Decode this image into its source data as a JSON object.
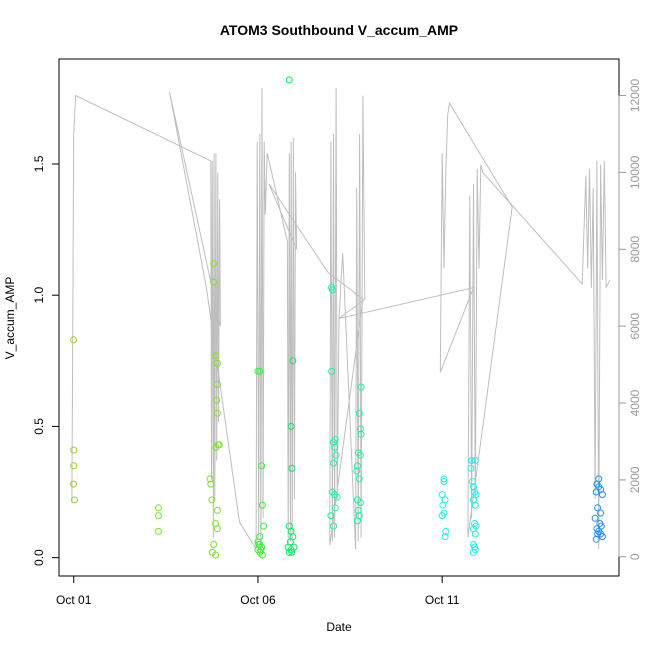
{
  "chart_data": {
    "type": "scatter",
    "title": "ATOM3 Southbound V_accum_AMP",
    "xlabel": "Date",
    "ylabel": "V_accum_AMP",
    "x_ticks": [
      "Oct 01",
      "Oct 06",
      "Oct 11"
    ],
    "x_tick_values": [
      1,
      6,
      11
    ],
    "xlim": [
      0.6,
      15.8
    ],
    "ylim": [
      -0.07,
      1.9
    ],
    "y_ticks": [
      "0.0",
      "0.5",
      "1.0",
      "1.5"
    ],
    "y_tick_values": [
      0,
      0.5,
      1.0,
      1.5
    ],
    "y2_ticks": [
      "0",
      "2000",
      "4000",
      "6000",
      "8000",
      "10000",
      "12000"
    ],
    "y2_tick_values": [
      0,
      2000,
      4000,
      6000,
      8000,
      10000,
      12000
    ],
    "y2lim": [
      -500,
      12950
    ],
    "grid": false,
    "colors": [
      "#9ACD32",
      "#7FE030",
      "#3EF03E",
      "#00F060",
      "#22F0A0",
      "#22EEEE",
      "#1E90FF"
    ],
    "series": [
      {
        "values": [
          [
            1.0,
            0.83
          ],
          [
            1.0,
            0.41
          ],
          [
            1.0,
            0.35
          ],
          [
            1.0,
            0.28
          ],
          [
            1.02,
            0.22
          ]
        ]
      },
      {
        "values": [
          [
            3.3,
            0.19
          ],
          [
            3.3,
            0.16
          ],
          [
            3.3,
            0.1
          ],
          [
            4.7,
            0.3
          ],
          [
            4.72,
            0.28
          ],
          [
            4.75,
            0.22
          ],
          [
            4.8,
            1.12
          ],
          [
            4.8,
            1.05
          ],
          [
            4.85,
            0.77
          ],
          [
            4.9,
            0.74
          ],
          [
            4.9,
            0.66
          ],
          [
            4.88,
            0.6
          ],
          [
            4.9,
            0.55
          ],
          [
            4.92,
            0.43
          ],
          [
            4.86,
            0.42
          ],
          [
            4.95,
            0.43
          ],
          [
            4.9,
            0.18
          ],
          [
            4.85,
            0.13
          ],
          [
            4.9,
            0.11
          ],
          [
            4.8,
            0.05
          ],
          [
            4.76,
            0.02
          ],
          [
            4.85,
            0.01
          ]
        ]
      },
      {
        "values": [
          [
            6.0,
            0.71
          ],
          [
            6.05,
            0.71
          ],
          [
            6.1,
            0.35
          ],
          [
            6.12,
            0.2
          ],
          [
            6.15,
            0.12
          ],
          [
            6.05,
            0.08
          ],
          [
            6.0,
            0.06
          ],
          [
            6.05,
            0.05
          ],
          [
            6.1,
            0.04
          ],
          [
            6.0,
            0.03
          ],
          [
            6.05,
            0.02
          ],
          [
            6.12,
            0.01
          ],
          [
            6.02,
            0.05
          ],
          [
            6.08,
            0.03
          ]
        ]
      },
      {
        "values": [
          [
            6.85,
            1.82
          ],
          [
            6.95,
            0.75
          ],
          [
            6.9,
            0.5
          ],
          [
            6.92,
            0.34
          ],
          [
            6.85,
            0.12
          ],
          [
            6.9,
            0.1
          ],
          [
            6.95,
            0.08
          ],
          [
            6.88,
            0.06
          ],
          [
            6.82,
            0.04
          ],
          [
            6.98,
            0.04
          ],
          [
            6.9,
            0.03
          ],
          [
            6.85,
            0.02
          ],
          [
            6.92,
            0.02
          ]
        ]
      },
      {
        "values": [
          [
            8.0,
            1.03
          ],
          [
            8.02,
            1.02
          ],
          [
            8.0,
            0.71
          ],
          [
            8.1,
            0.45
          ],
          [
            8.05,
            0.44
          ],
          [
            8.08,
            0.42
          ],
          [
            8.12,
            0.39
          ],
          [
            8.05,
            0.36
          ],
          [
            8.02,
            0.25
          ],
          [
            8.08,
            0.24
          ],
          [
            8.15,
            0.23
          ],
          [
            8.1,
            0.19
          ],
          [
            7.98,
            0.16
          ],
          [
            8.05,
            0.12
          ],
          [
            8.8,
            0.65
          ],
          [
            8.75,
            0.55
          ],
          [
            8.78,
            0.49
          ],
          [
            8.8,
            0.47
          ],
          [
            8.72,
            0.4
          ],
          [
            8.78,
            0.39
          ],
          [
            8.7,
            0.35
          ],
          [
            8.68,
            0.33
          ],
          [
            8.75,
            0.3
          ],
          [
            8.7,
            0.22
          ],
          [
            8.78,
            0.21
          ],
          [
            8.72,
            0.18
          ],
          [
            8.75,
            0.16
          ],
          [
            8.7,
            0.14
          ]
        ]
      },
      {
        "values": [
          [
            11.05,
            0.3
          ],
          [
            11.05,
            0.29
          ],
          [
            11.0,
            0.24
          ],
          [
            11.08,
            0.22
          ],
          [
            11.02,
            0.2
          ],
          [
            11.05,
            0.17
          ],
          [
            11.0,
            0.16
          ],
          [
            11.1,
            0.1
          ],
          [
            11.08,
            0.08
          ],
          [
            11.8,
            0.37
          ],
          [
            11.9,
            0.37
          ],
          [
            11.78,
            0.34
          ],
          [
            11.82,
            0.29
          ],
          [
            11.85,
            0.27
          ],
          [
            11.88,
            0.25
          ],
          [
            11.92,
            0.24
          ],
          [
            11.85,
            0.22
          ],
          [
            11.9,
            0.2
          ],
          [
            11.88,
            0.13
          ],
          [
            11.92,
            0.12
          ],
          [
            11.85,
            0.11
          ],
          [
            11.9,
            0.09
          ],
          [
            11.85,
            0.05
          ],
          [
            11.88,
            0.04
          ],
          [
            11.9,
            0.03
          ],
          [
            11.85,
            0.02
          ]
        ]
      },
      {
        "values": [
          [
            15.25,
            0.3
          ],
          [
            15.2,
            0.28
          ],
          [
            15.25,
            0.27
          ],
          [
            15.3,
            0.26
          ],
          [
            15.18,
            0.25
          ],
          [
            15.35,
            0.24
          ],
          [
            15.22,
            0.19
          ],
          [
            15.3,
            0.17
          ],
          [
            15.15,
            0.15
          ],
          [
            15.28,
            0.13
          ],
          [
            15.32,
            0.12
          ],
          [
            15.2,
            0.11
          ],
          [
            15.25,
            0.1
          ],
          [
            15.3,
            0.09
          ],
          [
            15.22,
            0.09
          ],
          [
            15.35,
            0.08
          ],
          [
            15.18,
            0.07
          ]
        ]
      }
    ],
    "secondary_line": {
      "color": "#BEBEBE",
      "points": [
        [
          0.95,
          1400
        ],
        [
          1.0,
          11000
        ],
        [
          1.05,
          12000
        ],
        [
          4.72,
          10300
        ],
        [
          4.74,
          2000
        ],
        [
          4.76,
          10300
        ],
        [
          4.79,
          500
        ],
        [
          4.81,
          10500
        ],
        [
          4.83,
          1500
        ],
        [
          4.86,
          10500
        ],
        [
          4.88,
          2500
        ],
        [
          4.91,
          10000
        ],
        [
          4.93,
          3500
        ],
        [
          4.96,
          9300
        ],
        [
          4.98,
          6000
        ],
        [
          3.6,
          12100
        ],
        [
          4.6,
          7000
        ],
        [
          5.5,
          900
        ],
        [
          5.95,
          200
        ],
        [
          5.98,
          10800
        ],
        [
          6.02,
          500
        ],
        [
          6.05,
          11000
        ],
        [
          6.08,
          200
        ],
        [
          6.11,
          12200
        ],
        [
          6.14,
          1000
        ],
        [
          6.17,
          10800
        ],
        [
          6.2,
          8900
        ],
        [
          6.25,
          10500
        ],
        [
          6.8,
          8200
        ],
        [
          6.82,
          300
        ],
        [
          6.85,
          10500
        ],
        [
          6.88,
          400
        ],
        [
          6.9,
          10800
        ],
        [
          6.93,
          400
        ],
        [
          6.96,
          10900
        ],
        [
          6.99,
          1500
        ],
        [
          7.02,
          10000
        ],
        [
          7.05,
          8000
        ],
        [
          6.3,
          9700
        ],
        [
          7.9,
          7400
        ],
        [
          8.85,
          6700
        ],
        [
          7.95,
          300
        ],
        [
          7.98,
          10800
        ],
        [
          8.02,
          400
        ],
        [
          8.05,
          11000
        ],
        [
          8.08,
          500
        ],
        [
          8.12,
          12200
        ],
        [
          8.15,
          1500
        ],
        [
          8.2,
          6200
        ],
        [
          8.3,
          7900
        ],
        [
          8.65,
          200
        ],
        [
          8.68,
          9600
        ],
        [
          8.72,
          400
        ],
        [
          8.76,
          11000
        ],
        [
          8.8,
          500
        ],
        [
          8.85,
          12000
        ],
        [
          8.9,
          6700
        ],
        [
          8.2,
          6200
        ],
        [
          11.85,
          7000
        ],
        [
          10.95,
          4800
        ],
        [
          11.0,
          10500
        ],
        [
          11.05,
          7500
        ],
        [
          11.1,
          10000
        ],
        [
          11.15,
          11500
        ],
        [
          11.2,
          11800
        ],
        [
          12.9,
          9100
        ],
        [
          11.7,
          500
        ],
        [
          11.75,
          9400
        ],
        [
          11.8,
          1000
        ],
        [
          11.85,
          9700
        ],
        [
          11.9,
          1500
        ],
        [
          11.95,
          10100
        ],
        [
          12.0,
          7500
        ],
        [
          12.05,
          10200
        ],
        [
          12.1,
          10000
        ],
        [
          14.8,
          7100
        ],
        [
          14.9,
          9900
        ],
        [
          14.95,
          7500
        ],
        [
          15.0,
          10100
        ],
        [
          15.05,
          7000
        ],
        [
          15.1,
          9600
        ],
        [
          15.15,
          1500
        ],
        [
          15.2,
          10300
        ],
        [
          15.25,
          200
        ],
        [
          15.3,
          10200
        ],
        [
          15.35,
          7200
        ],
        [
          15.4,
          10300
        ],
        [
          15.45,
          7000
        ],
        [
          15.55,
          7200
        ]
      ]
    }
  }
}
